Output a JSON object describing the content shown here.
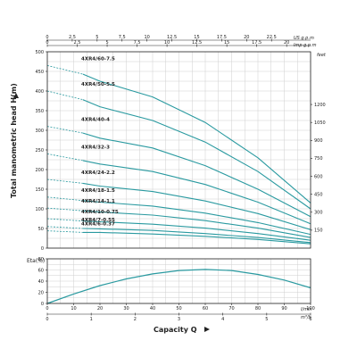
{
  "colors": {
    "curve": "#2a9aa0",
    "shutoff": "#2a9aa0",
    "axis": "#222222",
    "grid": "#cfcfcf"
  },
  "chart_data": [
    {
      "type": "line",
      "title": "",
      "ylabel": "Total manometric head H(m)",
      "ylabel_right_unit": "feet",
      "xlim": [
        0,
        100
      ],
      "ylim": [
        0,
        500
      ],
      "y_ticks": [
        0,
        50,
        100,
        150,
        200,
        250,
        300,
        350,
        400,
        450,
        500
      ],
      "y_right_ticks": [
        150,
        300,
        450,
        600,
        750,
        900,
        1050,
        1200
      ],
      "top_axes": [
        {
          "unit": "US g.p.m",
          "ticks": [
            0,
            2.5,
            5,
            7.5,
            10,
            12.5,
            15,
            17.5,
            20,
            22.5
          ],
          "gpm_factor": 0.2642
        },
        {
          "unit": "Imp g.p.m",
          "ticks": [
            0,
            2.5,
            5,
            7.5,
            10,
            12.5,
            15,
            17.5,
            20
          ],
          "gpm_factor": 0.22
        }
      ],
      "grid": true,
      "series": [
        {
          "name": "4XR4/60-7.5",
          "shutoff": 465,
          "x": [
            0,
            20,
            40,
            60,
            80,
            100
          ],
          "y": [
            445,
            425,
            385,
            320,
            230,
            115
          ]
        },
        {
          "name": "4XR4/50-5.5",
          "shutoff": 400,
          "x": [
            0,
            20,
            40,
            60,
            80,
            100
          ],
          "y": [
            380,
            360,
            325,
            270,
            195,
            100
          ]
        },
        {
          "name": "4XR4/40-4",
          "shutoff": 310,
          "x": [
            0,
            20,
            40,
            60,
            80,
            100
          ],
          "y": [
            295,
            280,
            255,
            210,
            150,
            80
          ]
        },
        {
          "name": "4XR4/32-3",
          "shutoff": 240,
          "x": [
            0,
            20,
            40,
            60,
            80,
            100
          ],
          "y": [
            225,
            214,
            195,
            162,
            117,
            62
          ]
        },
        {
          "name": "4XR4/24-2.2",
          "shutoff": 175,
          "x": [
            0,
            20,
            40,
            60,
            80,
            100
          ],
          "y": [
            167,
            158,
            144,
            120,
            88,
            47
          ]
        },
        {
          "name": "4XR4/18-1.5",
          "shutoff": 130,
          "x": [
            0,
            20,
            40,
            60,
            80,
            100
          ],
          "y": [
            123,
            117,
            107,
            89,
            65,
            35
          ]
        },
        {
          "name": "4XR4/14-1.1",
          "shutoff": 102,
          "x": [
            0,
            20,
            40,
            60,
            80,
            100
          ],
          "y": [
            97,
            92,
            84,
            70,
            51,
            27
          ]
        },
        {
          "name": "4XR4/10-0.75",
          "shutoff": 75,
          "x": [
            0,
            20,
            40,
            60,
            80,
            100
          ],
          "y": [
            71,
            67,
            61,
            51,
            37,
            20
          ]
        },
        {
          "name": "4XR4/7-0.55",
          "shutoff": 55,
          "x": [
            0,
            20,
            40,
            60,
            80,
            100
          ],
          "y": [
            52,
            49,
            45,
            37,
            27,
            14
          ]
        },
        {
          "name": "4XR4/6-0.37",
          "shutoff": 44,
          "x": [
            0,
            20,
            40,
            60,
            80,
            100
          ],
          "y": [
            42,
            40,
            36,
            30,
            22,
            11
          ]
        }
      ]
    },
    {
      "type": "line",
      "ylabel": "Eta(%)",
      "xlabel": "Capacity Q",
      "xlim": [
        0,
        100
      ],
      "ylim": [
        0,
        80
      ],
      "y_ticks": [
        0,
        20,
        40,
        60,
        80
      ],
      "x_ticks_lmin": [
        0,
        10,
        20,
        30,
        40,
        50,
        60,
        70,
        80,
        90,
        100
      ],
      "x_unit_lmin": "l/min",
      "x_ticks_m3h": [
        0,
        1,
        2,
        3,
        4,
        5,
        6
      ],
      "x_unit_m3h": "m³/h",
      "grid": true,
      "series": [
        {
          "x": [
            0,
            10,
            20,
            30,
            40,
            50,
            60,
            70,
            80,
            90,
            100
          ],
          "y": [
            0,
            17,
            32,
            44,
            53,
            59,
            61,
            59,
            52,
            42,
            28
          ]
        }
      ]
    }
  ]
}
